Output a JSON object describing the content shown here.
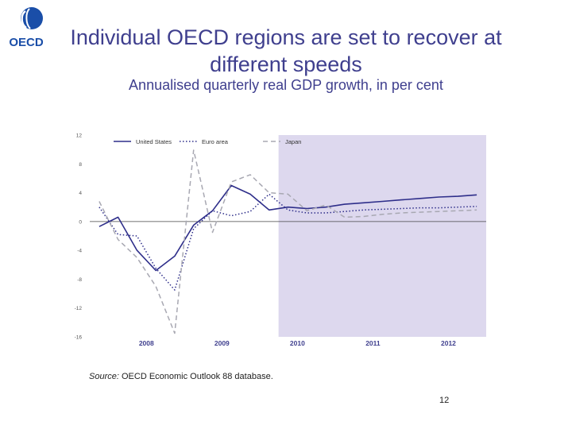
{
  "logo": {
    "text": "OECD",
    "icon": "oecd-logo-icon",
    "color": "#1a4ea8"
  },
  "header": {
    "title": "Individual OECD regions are set to recover at different speeds",
    "subtitle": "Annualised quarterly real GDP growth, in per cent"
  },
  "footer": {
    "source_label": "Source:",
    "source_text": "OECD Economic Outlook 88 database.",
    "page_number": "12"
  },
  "chart_data": {
    "type": "line",
    "title": "",
    "xlabel": "",
    "ylabel": "",
    "ylim": [
      -16,
      12
    ],
    "y_ticks": [
      "12",
      "8",
      "4",
      "0",
      "-4",
      "-8",
      "-12",
      "-16"
    ],
    "x_tick_labels": [
      "2008",
      "2009",
      "2010",
      "2011",
      "2012"
    ],
    "x": [
      "2007Q4",
      "2008Q1",
      "2008Q2",
      "2008Q3",
      "2008Q4",
      "2009Q1",
      "2009Q2",
      "2009Q3",
      "2009Q4",
      "2010Q1",
      "2010Q2",
      "2010Q3",
      "2010Q4",
      "2011Q1",
      "2011Q2",
      "2011Q3",
      "2011Q4",
      "2012Q1",
      "2012Q2",
      "2012Q3",
      "2012Q4"
    ],
    "projection_start": "2010Q2",
    "projection_color": "#ddd8ee",
    "legend_position": "top-left",
    "series": [
      {
        "name": "United States",
        "style": "solid",
        "color": "#2e2e8a",
        "values": [
          -0.7,
          0.6,
          -4.0,
          -6.8,
          -4.8,
          -0.5,
          1.5,
          5.0,
          3.8,
          1.6,
          2.0,
          1.8,
          2.0,
          2.4,
          2.6,
          2.8,
          3.0,
          3.2,
          3.4,
          3.5,
          3.7
        ]
      },
      {
        "name": "Euro area",
        "style": "dotted",
        "color": "#2e2e8a",
        "values": [
          2.0,
          -1.8,
          -2.0,
          -6.5,
          -9.5,
          -1.0,
          1.5,
          0.8,
          1.4,
          3.8,
          1.6,
          1.2,
          1.2,
          1.4,
          1.6,
          1.7,
          1.8,
          1.9,
          1.9,
          2.0,
          2.1
        ]
      },
      {
        "name": "Japan",
        "style": "dashed",
        "color": "#a8a8b2",
        "values": [
          2.8,
          -2.5,
          -5.0,
          -9.0,
          -15.5,
          9.9,
          -1.5,
          5.5,
          6.5,
          4.0,
          3.8,
          1.5,
          2.3,
          0.6,
          0.7,
          1.0,
          1.2,
          1.3,
          1.4,
          1.5,
          1.6
        ]
      }
    ]
  }
}
